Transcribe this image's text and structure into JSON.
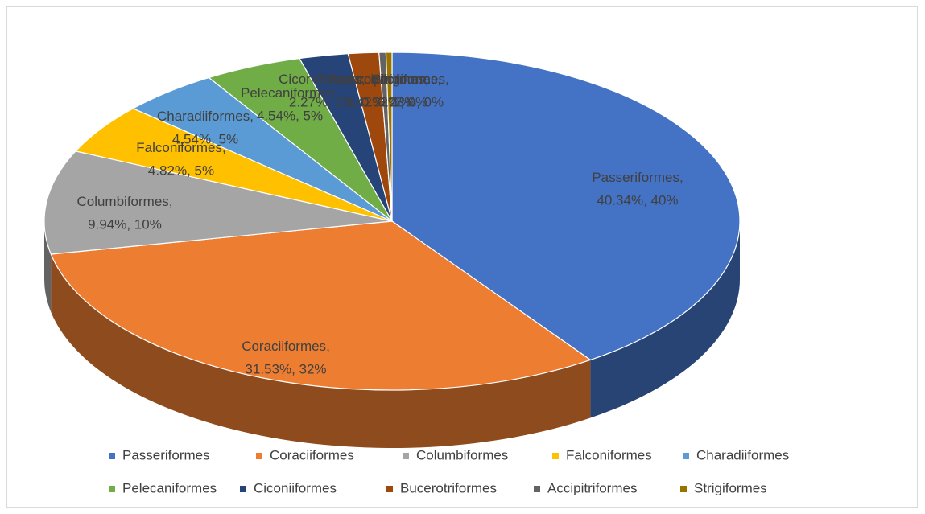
{
  "chart_data": {
    "type": "pie3d",
    "categories": [
      "Passeriformes",
      "Coraciiformes",
      "Columbiformes",
      "Falconiformes",
      "Charadiiformes",
      "Pelecaniformes",
      "Ciconiiformes",
      "Bucerotriformes",
      "Accipitriformes",
      "Strigiformes"
    ],
    "values": [
      40.34,
      31.53,
      9.94,
      4.82,
      4.54,
      4.54,
      2.27,
      1.42,
      0.32,
      0.28
    ],
    "value_labels": [
      "40.34%, 40%",
      "31.53%, 32%",
      "9.94%, 10%",
      "4.82%, 5%",
      "4.54%, 5%",
      "4.54%, 5%",
      "2.27%, 2%",
      "1.42%, 1%",
      "0.32%, 0%",
      "0.28%, 0%"
    ],
    "colors": [
      "#4472c4",
      "#ed7d31",
      "#a5a5a5",
      "#ffc000",
      "#5b9bd5",
      "#70ad47",
      "#264478",
      "#9e480e",
      "#636363",
      "#997300"
    ],
    "legend": "bottom"
  }
}
